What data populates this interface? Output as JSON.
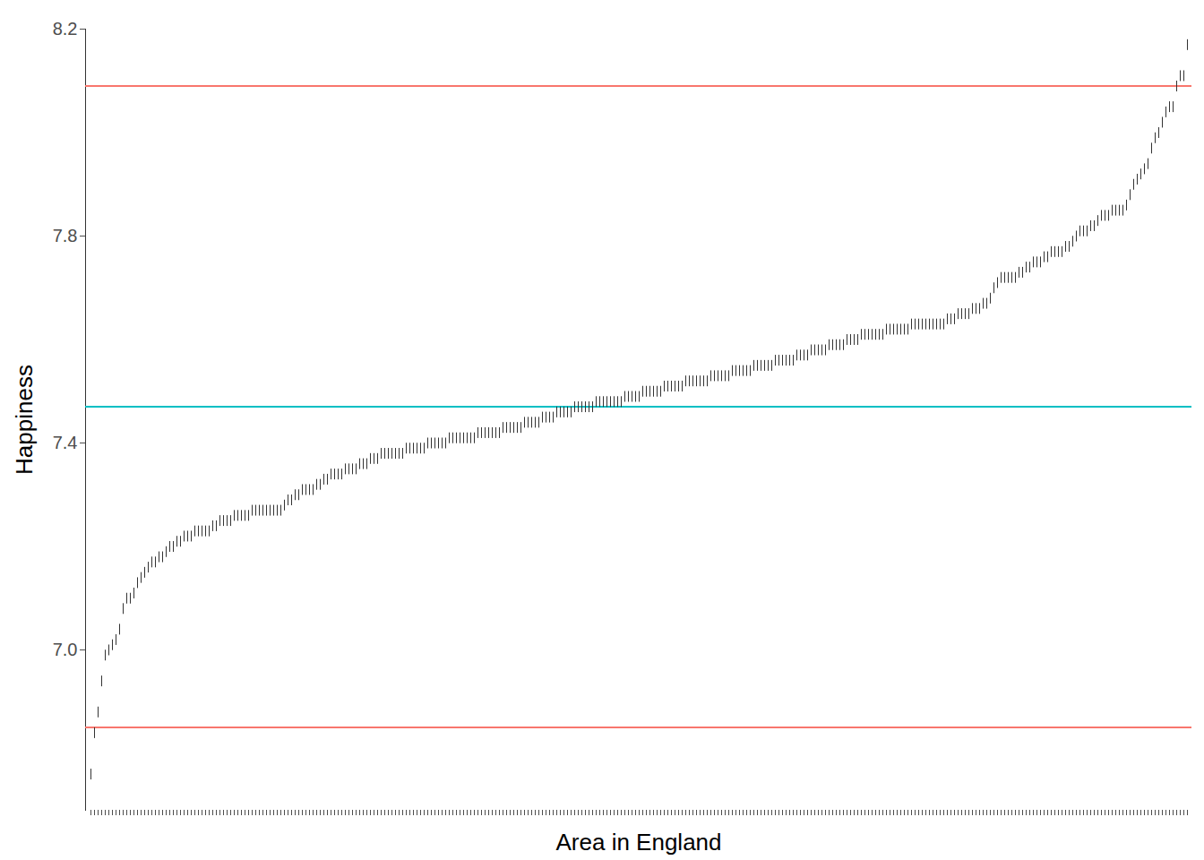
{
  "chart_data": {
    "type": "scatter",
    "xlabel": "Area in England",
    "ylabel": "Happiness",
    "marker": "vline",
    "color": "#333333",
    "grid": false,
    "tick_labels": "y",
    "ylim": [
      6.69,
      8.2
    ],
    "yticks": [
      {
        "value": 7,
        "label": "7.0"
      },
      {
        "value": 7.4,
        "label": "7.4"
      },
      {
        "value": 7.8,
        "label": "7.8"
      },
      {
        "value": 8.2,
        "label": "8.2"
      }
    ],
    "hlines": [
      {
        "value": 8.09,
        "color": "#F8766D"
      },
      {
        "value": 7.47,
        "color": "#00BFC4"
      },
      {
        "value": 6.85,
        "color": "#F8766D"
      }
    ],
    "categories": [
      null,
      null,
      null,
      null,
      null,
      null,
      null,
      null,
      null,
      null,
      null,
      null,
      null,
      null,
      null,
      null,
      null,
      null,
      null,
      null,
      null,
      null,
      null,
      null,
      null,
      null,
      null,
      null,
      null,
      null,
      null,
      null,
      null,
      null,
      null,
      null,
      null,
      null,
      null,
      null,
      null,
      null,
      null,
      null,
      null,
      null,
      null,
      null,
      null,
      null,
      null,
      null,
      null,
      null,
      null,
      null,
      null,
      null,
      null,
      null,
      null,
      null,
      null,
      null,
      null,
      null,
      null,
      null,
      null,
      null,
      null,
      null,
      null,
      null,
      null,
      null,
      null,
      null,
      null,
      null,
      null,
      null,
      null,
      null,
      null,
      null,
      null,
      null,
      null,
      null,
      null,
      null,
      null,
      null,
      null,
      null,
      null,
      null,
      null,
      null,
      null,
      null,
      null,
      null,
      null,
      null,
      null,
      null,
      null,
      null,
      null,
      null,
      null,
      null,
      null,
      null,
      null,
      null,
      null,
      null,
      null,
      null,
      null,
      null,
      null,
      null,
      null,
      null,
      null,
      null,
      null,
      null,
      null,
      null,
      null,
      null,
      null,
      null,
      null,
      null,
      null,
      null,
      null,
      null,
      null,
      null,
      null,
      null,
      null,
      null,
      null,
      null,
      null,
      null,
      null,
      null,
      null,
      null,
      null,
      null,
      null,
      null,
      null,
      null,
      null,
      null,
      null,
      null,
      null,
      null,
      null,
      null,
      null,
      null,
      null,
      null,
      null,
      null,
      null,
      null,
      null,
      null,
      null,
      null,
      null,
      null,
      null,
      null,
      null,
      null,
      null,
      null,
      null,
      null,
      null,
      null,
      null,
      null,
      null,
      null,
      null,
      null,
      null,
      null,
      null,
      null,
      null,
      null,
      null,
      null,
      null,
      null,
      null,
      null,
      null,
      null,
      null,
      null,
      null,
      null,
      null,
      null,
      null,
      null,
      null,
      null,
      null,
      null,
      null,
      null,
      null,
      null,
      null,
      null,
      null,
      null,
      null,
      null,
      null,
      null,
      null,
      null,
      null,
      null,
      null,
      null,
      null,
      null,
      null,
      null,
      null,
      null,
      null,
      null,
      null,
      null,
      null,
      null,
      null,
      null,
      null,
      null,
      null,
      null,
      null,
      null,
      null,
      null,
      null,
      null,
      null,
      null,
      null,
      null,
      null,
      null,
      null,
      null,
      null,
      null,
      null,
      null,
      null,
      null,
      null,
      null,
      null,
      null,
      null,
      null,
      null,
      null,
      null,
      null,
      null,
      null,
      null,
      null,
      null,
      null,
      null,
      null,
      null,
      null,
      null,
      null,
      null
    ],
    "values": [
      6.76,
      6.84,
      6.88,
      6.94,
      6.99,
      7.0,
      7.01,
      7.02,
      7.04,
      7.08,
      7.1,
      7.1,
      7.11,
      7.13,
      7.14,
      7.15,
      7.16,
      7.17,
      7.17,
      7.18,
      7.18,
      7.19,
      7.2,
      7.2,
      7.21,
      7.21,
      7.22,
      7.22,
      7.22,
      7.23,
      7.23,
      7.23,
      7.23,
      7.23,
      7.24,
      7.24,
      7.25,
      7.25,
      7.25,
      7.25,
      7.26,
      7.26,
      7.26,
      7.26,
      7.26,
      7.27,
      7.27,
      7.27,
      7.27,
      7.27,
      7.27,
      7.27,
      7.27,
      7.27,
      7.28,
      7.29,
      7.29,
      7.3,
      7.3,
      7.31,
      7.31,
      7.31,
      7.31,
      7.32,
      7.32,
      7.33,
      7.33,
      7.34,
      7.34,
      7.34,
      7.34,
      7.35,
      7.35,
      7.35,
      7.35,
      7.36,
      7.36,
      7.36,
      7.37,
      7.37,
      7.37,
      7.38,
      7.38,
      7.38,
      7.38,
      7.38,
      7.38,
      7.38,
      7.39,
      7.39,
      7.39,
      7.39,
      7.39,
      7.39,
      7.4,
      7.4,
      7.4,
      7.4,
      7.4,
      7.4,
      7.41,
      7.41,
      7.41,
      7.41,
      7.41,
      7.41,
      7.41,
      7.41,
      7.42,
      7.42,
      7.42,
      7.42,
      7.42,
      7.42,
      7.42,
      7.43,
      7.43,
      7.43,
      7.43,
      7.43,
      7.43,
      7.44,
      7.44,
      7.44,
      7.44,
      7.44,
      7.45,
      7.45,
      7.45,
      7.45,
      7.46,
      7.46,
      7.46,
      7.46,
      7.46,
      7.47,
      7.47,
      7.47,
      7.47,
      7.47,
      7.47,
      7.48,
      7.48,
      7.48,
      7.48,
      7.48,
      7.48,
      7.48,
      7.48,
      7.49,
      7.49,
      7.49,
      7.49,
      7.49,
      7.5,
      7.5,
      7.5,
      7.5,
      7.5,
      7.5,
      7.51,
      7.51,
      7.51,
      7.51,
      7.51,
      7.51,
      7.52,
      7.52,
      7.52,
      7.52,
      7.52,
      7.52,
      7.52,
      7.53,
      7.53,
      7.53,
      7.53,
      7.53,
      7.53,
      7.54,
      7.54,
      7.54,
      7.54,
      7.54,
      7.54,
      7.55,
      7.55,
      7.55,
      7.55,
      7.55,
      7.55,
      7.56,
      7.56,
      7.56,
      7.56,
      7.56,
      7.56,
      7.57,
      7.57,
      7.57,
      7.57,
      7.58,
      7.58,
      7.58,
      7.58,
      7.58,
      7.59,
      7.59,
      7.59,
      7.59,
      7.59,
      7.6,
      7.6,
      7.6,
      7.6,
      7.61,
      7.61,
      7.61,
      7.61,
      7.61,
      7.61,
      7.61,
      7.62,
      7.62,
      7.62,
      7.62,
      7.62,
      7.62,
      7.62,
      7.63,
      7.63,
      7.63,
      7.63,
      7.63,
      7.63,
      7.63,
      7.63,
      7.63,
      7.63,
      7.64,
      7.64,
      7.64,
      7.65,
      7.65,
      7.65,
      7.65,
      7.66,
      7.66,
      7.66,
      7.67,
      7.67,
      7.68,
      7.7,
      7.71,
      7.72,
      7.72,
      7.72,
      7.72,
      7.72,
      7.73,
      7.73,
      7.74,
      7.74,
      7.75,
      7.75,
      7.75,
      7.76,
      7.76,
      7.77,
      7.77,
      7.77,
      7.77,
      7.78,
      7.78,
      7.79,
      7.8,
      7.81,
      7.81,
      7.81,
      7.82,
      7.82,
      7.83,
      7.84,
      7.84,
      7.84,
      7.85,
      7.85,
      7.85,
      7.85,
      7.86,
      7.88,
      7.9,
      7.91,
      7.92,
      7.93,
      7.94,
      7.97,
      7.99,
      8.0,
      8.02,
      8.04,
      8.05,
      8.05,
      8.09,
      8.11,
      8.11,
      8.17
    ]
  }
}
